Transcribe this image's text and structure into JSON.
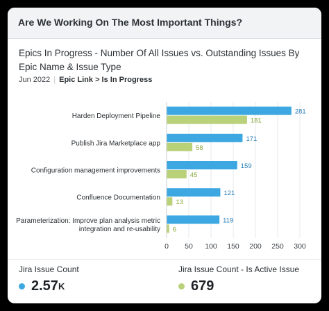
{
  "header": {
    "title": "Are We Working On The Most Important Things?"
  },
  "chart_data": {
    "type": "bar",
    "orientation": "horizontal",
    "title": "Epics In Progress - Number Of All Issues vs. Outstanding Issues By Epic Name & Issue Type",
    "subtitle_date": "Jun 2022",
    "subtitle_filter": "Epic Link > Is In Progress",
    "categories": [
      "Harden Deployment Pipeline",
      "Publish Jira Marketplace app",
      "Configuration management improvements",
      "Confluence Documentation",
      "Parameterization: Improve plan analysis metric integration and re-usability"
    ],
    "series": [
      {
        "name": "Jira Issue Count",
        "color": "#3ca7e0",
        "values": [
          281,
          171,
          159,
          121,
          119
        ]
      },
      {
        "name": "Jira Issue Count - Is Active Issue",
        "color": "#b9d27a",
        "values": [
          181,
          58,
          45,
          13,
          6
        ]
      }
    ],
    "x_ticks": [
      0,
      50,
      100,
      150,
      200,
      250,
      300
    ],
    "xlim": [
      0,
      300
    ],
    "grid": true,
    "legend": "bottom"
  },
  "footer": {
    "metrics": [
      {
        "label": "Jira Issue Count",
        "value": "2.57",
        "suffix": "K",
        "color": "#3ca7e0"
      },
      {
        "label": "Jira Issue Count - Is Active Issue",
        "value": "679",
        "suffix": "",
        "color": "#b9d27a"
      }
    ]
  }
}
